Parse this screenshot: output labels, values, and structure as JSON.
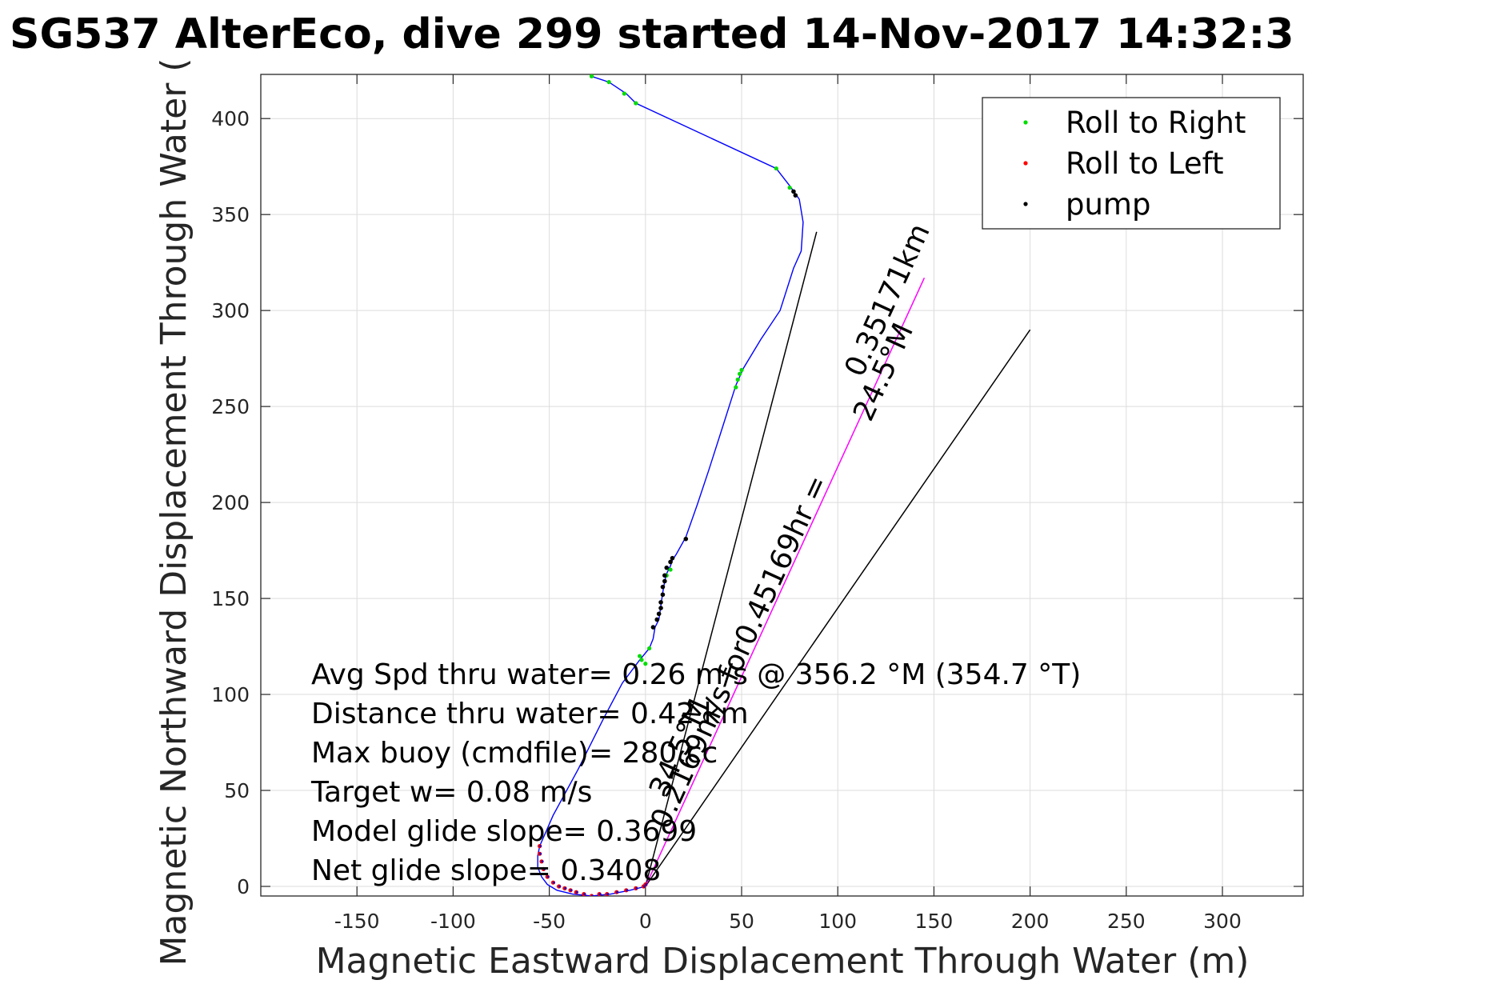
{
  "chart_data": {
    "type": "scatter",
    "title": "SG537 AlterEco, dive 299 started 14-Nov-2017 14:32:3",
    "xlabel": "Magnetic Eastward Displacement Through Water (m)",
    "ylabel": "Magnetic Northward Displacement Through Water (",
    "xlim": [
      -200,
      342
    ],
    "ylim": [
      -5,
      423
    ],
    "xticks": [
      -150,
      -100,
      -50,
      0,
      50,
      100,
      150,
      200,
      250,
      300
    ],
    "yticks": [
      0,
      50,
      100,
      150,
      200,
      250,
      300,
      350,
      400
    ],
    "grid": true,
    "legend": {
      "position": "top-right",
      "entries": [
        {
          "label": "Roll to Right",
          "color": "#00dd00"
        },
        {
          "label": "Roll to Left",
          "color": "#ff0000"
        },
        {
          "label": "pump",
          "color": "#000000"
        }
      ]
    },
    "track_color": "#0000ff",
    "track": [
      [
        0,
        0
      ],
      [
        -8,
        -2
      ],
      [
        -18,
        -4
      ],
      [
        -28,
        -5
      ],
      [
        -38,
        -4
      ],
      [
        -46,
        -2
      ],
      [
        -51,
        1
      ],
      [
        -54,
        5
      ],
      [
        -56,
        10
      ],
      [
        -56,
        16
      ],
      [
        -55,
        21
      ],
      [
        -48,
        37
      ],
      [
        -35,
        61
      ],
      [
        -22,
        87
      ],
      [
        -12,
        106
      ],
      [
        -3,
        118
      ],
      [
        2,
        124
      ],
      [
        4,
        129
      ],
      [
        5,
        135
      ],
      [
        7,
        139
      ],
      [
        8,
        146
      ],
      [
        9,
        153
      ],
      [
        10,
        159
      ],
      [
        11,
        163
      ],
      [
        13,
        167
      ],
      [
        14,
        170
      ],
      [
        16,
        173
      ],
      [
        21,
        182
      ],
      [
        27,
        199
      ],
      [
        33,
        217
      ],
      [
        40,
        239
      ],
      [
        47,
        261
      ],
      [
        51,
        270
      ],
      [
        60,
        285
      ],
      [
        70,
        300
      ],
      [
        77,
        322
      ],
      [
        81,
        331
      ],
      [
        82,
        346
      ],
      [
        80,
        358
      ],
      [
        75,
        365
      ],
      [
        68,
        374
      ],
      [
        -5,
        408
      ],
      [
        -10,
        413
      ],
      [
        -19,
        419
      ],
      [
        -28,
        422
      ]
    ],
    "roll_to_right": [
      [
        -28,
        422
      ],
      [
        -19,
        419
      ],
      [
        -11,
        413
      ],
      [
        -5,
        408
      ],
      [
        68,
        374
      ],
      [
        75,
        364
      ],
      [
        77,
        362
      ],
      [
        47,
        260
      ],
      [
        48,
        264
      ],
      [
        49,
        267
      ],
      [
        50,
        269
      ],
      [
        0,
        116
      ],
      [
        -2,
        118
      ],
      [
        -3,
        120
      ],
      [
        2,
        124
      ],
      [
        11,
        162
      ],
      [
        13,
        165
      ]
    ],
    "roll_to_left": [
      [
        -55,
        21
      ],
      [
        -55,
        17
      ],
      [
        -54,
        13
      ],
      [
        -53,
        9
      ],
      [
        -51,
        5
      ],
      [
        -48,
        2
      ],
      [
        -45,
        0
      ],
      [
        -42,
        -1
      ],
      [
        -39,
        -2
      ],
      [
        -36,
        -3
      ],
      [
        -32,
        -4
      ],
      [
        -28,
        -5
      ],
      [
        -24,
        -4
      ],
      [
        -20,
        -4
      ],
      [
        -15,
        -3
      ],
      [
        -10,
        -2
      ],
      [
        -5,
        -1
      ],
      [
        -1,
        0
      ],
      [
        0,
        1
      ]
    ],
    "pump": [
      [
        21,
        181
      ],
      [
        14,
        171
      ],
      [
        13,
        169
      ],
      [
        11,
        166
      ],
      [
        10,
        162
      ],
      [
        10,
        159
      ],
      [
        9,
        156
      ],
      [
        9,
        152
      ],
      [
        8,
        148
      ],
      [
        8,
        145
      ],
      [
        7,
        142
      ],
      [
        6,
        139
      ],
      [
        4,
        135
      ],
      [
        78,
        360
      ],
      [
        77,
        362
      ]
    ],
    "magenta_line": [
      [
        0,
        0
      ],
      [
        145,
        317
      ]
    ],
    "black_lines": [
      [
        [
          0,
          0
        ],
        [
          89,
          341
        ]
      ],
      [
        [
          0,
          0
        ],
        [
          200,
          290
        ]
      ]
    ],
    "rotated_annotations": [
      {
        "text": "0.35171km",
        "color": "#000000"
      },
      {
        "text": "24.5°M",
        "color": "#000000"
      },
      {
        "text": "0.2169m/s for0.45169hr =",
        "color": "#000000"
      },
      {
        "text": "34.5°M",
        "color": "#000000"
      }
    ],
    "annotations": [
      "Avg Spd thru water=  0.26 m/s @ 356.2 °M (354.7 °T)",
      "Distance thru water=  0.42 km",
      "Max buoy (cmdfile)= 280 cc",
      "Target w= 0.08 m/s",
      "Model glide slope= 0.3699",
      "Net glide slope= 0.3408"
    ]
  }
}
